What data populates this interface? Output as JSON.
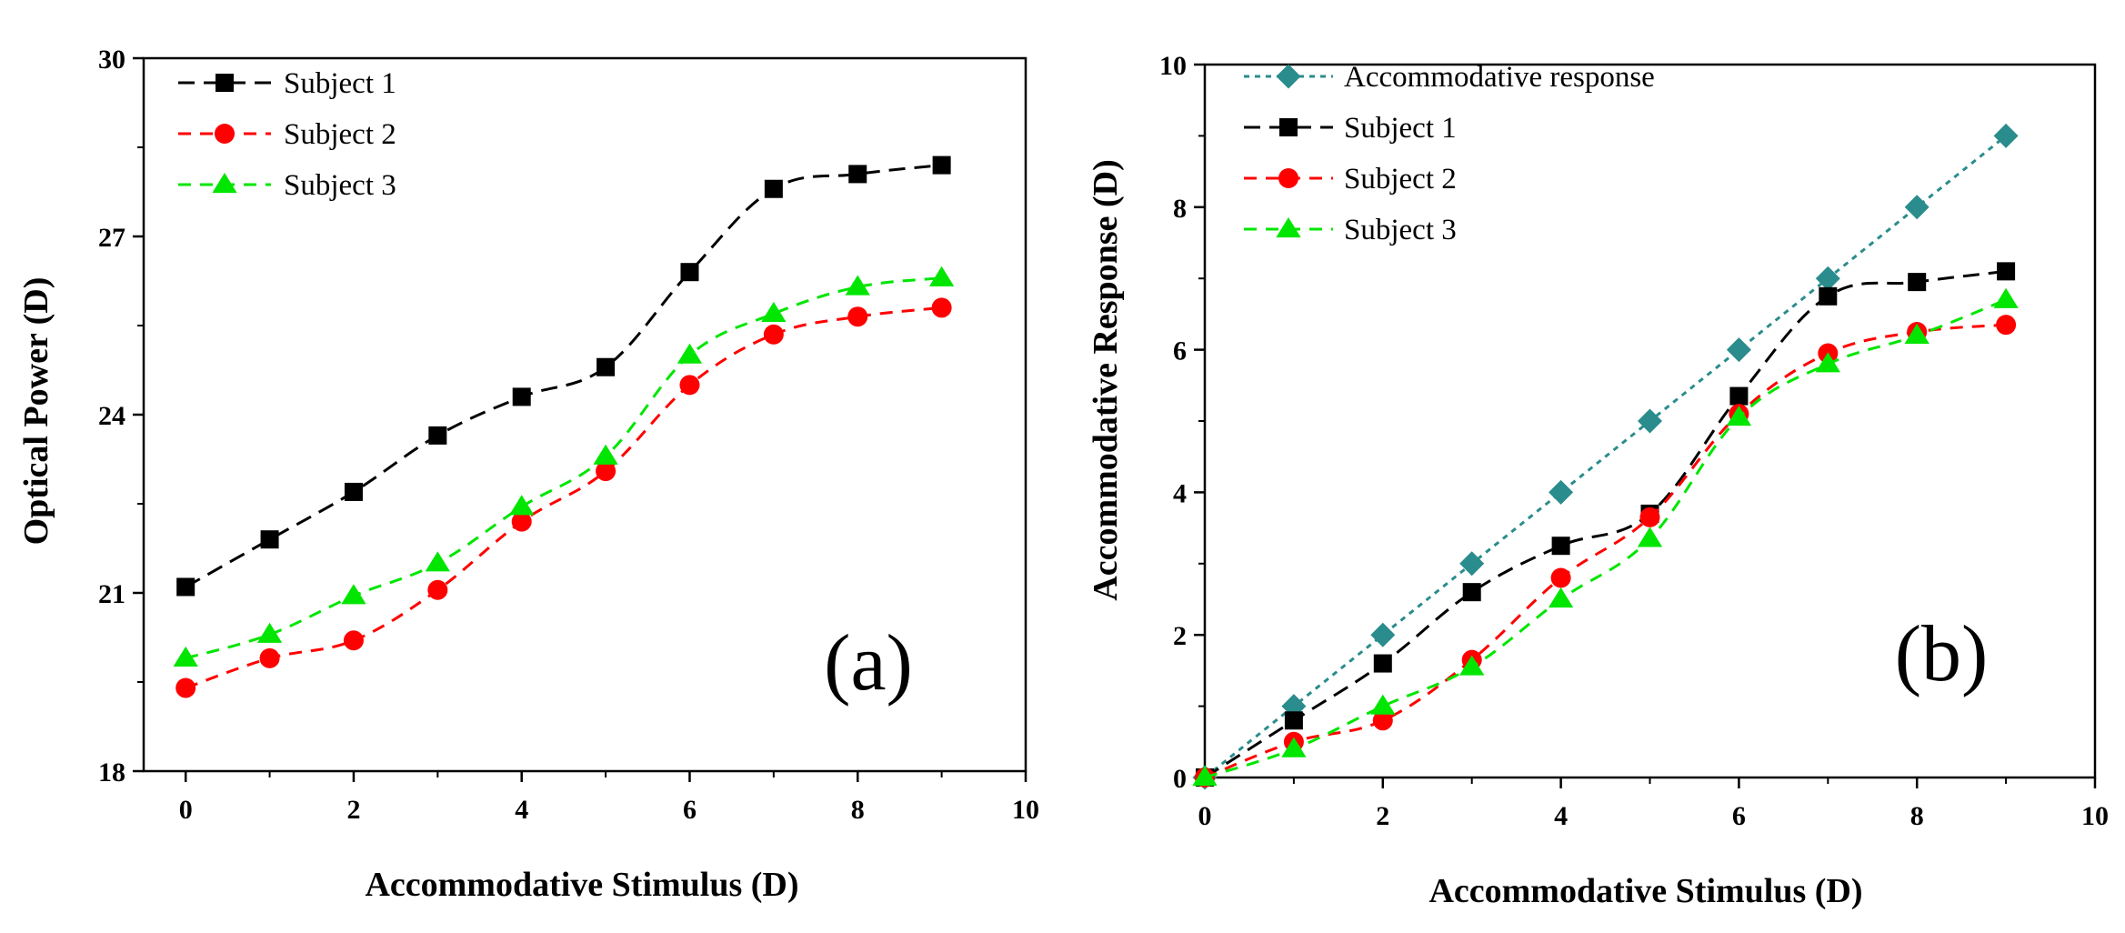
{
  "chart_data": [
    {
      "type": "line",
      "panel_label": "(a)",
      "xlabel": "Accommodative Stimulus (D)",
      "ylabel": "Optical Power (D)",
      "xlim": [
        -0.5,
        10
      ],
      "ylim": [
        18,
        30
      ],
      "xticks": [
        0,
        2,
        4,
        6,
        8,
        10
      ],
      "yticks": [
        18,
        21,
        24,
        27,
        30
      ],
      "x": [
        0,
        1,
        2,
        3,
        4,
        5,
        6,
        7,
        8,
        9
      ],
      "series": [
        {
          "name": "Subject 1",
          "color": "#000000",
          "marker": "square",
          "dash": "18,10",
          "values": [
            21.1,
            21.9,
            22.7,
            23.65,
            24.3,
            24.8,
            26.4,
            27.8,
            28.05,
            28.2
          ]
        },
        {
          "name": "Subject 2",
          "color": "#ff0000",
          "marker": "circle",
          "dash": "14,10",
          "values": [
            19.4,
            19.9,
            20.2,
            21.05,
            22.2,
            23.05,
            24.5,
            25.35,
            25.65,
            25.8
          ]
        },
        {
          "name": "Subject 3",
          "color": "#00e600",
          "marker": "triangle",
          "dash": "14,10",
          "values": [
            19.9,
            20.3,
            20.95,
            21.5,
            22.45,
            23.3,
            25.0,
            25.7,
            26.15,
            26.3
          ]
        }
      ]
    },
    {
      "type": "line",
      "panel_label": "(b)",
      "xlabel": "Accommodative Stimulus (D)",
      "ylabel": "Accommodative Response (D)",
      "xlim": [
        0,
        10
      ],
      "ylim": [
        0,
        10
      ],
      "xticks": [
        0,
        2,
        4,
        6,
        8,
        10
      ],
      "yticks": [
        0,
        2,
        4,
        6,
        8,
        10
      ],
      "x": [
        0,
        1,
        2,
        3,
        4,
        5,
        6,
        7,
        8,
        9
      ],
      "series": [
        {
          "name": "Accommodative response",
          "color": "#2a8c8c",
          "marker": "diamond",
          "dash": "6,6",
          "values": [
            0,
            1,
            2,
            3,
            4,
            5,
            6,
            7,
            8,
            9
          ]
        },
        {
          "name": "Subject 1",
          "color": "#000000",
          "marker": "square",
          "dash": "18,10",
          "values": [
            0,
            0.8,
            1.6,
            2.6,
            3.25,
            3.7,
            5.35,
            6.75,
            6.95,
            7.1
          ]
        },
        {
          "name": "Subject 2",
          "color": "#ff0000",
          "marker": "circle",
          "dash": "14,10",
          "values": [
            0,
            0.5,
            0.8,
            1.65,
            2.8,
            3.65,
            5.1,
            5.95,
            6.25,
            6.35
          ]
        },
        {
          "name": "Subject 3",
          "color": "#00e600",
          "marker": "triangle",
          "dash": "14,10",
          "values": [
            0,
            0.4,
            1.0,
            1.55,
            2.5,
            3.35,
            5.05,
            5.8,
            6.2,
            6.7
          ]
        }
      ]
    }
  ]
}
